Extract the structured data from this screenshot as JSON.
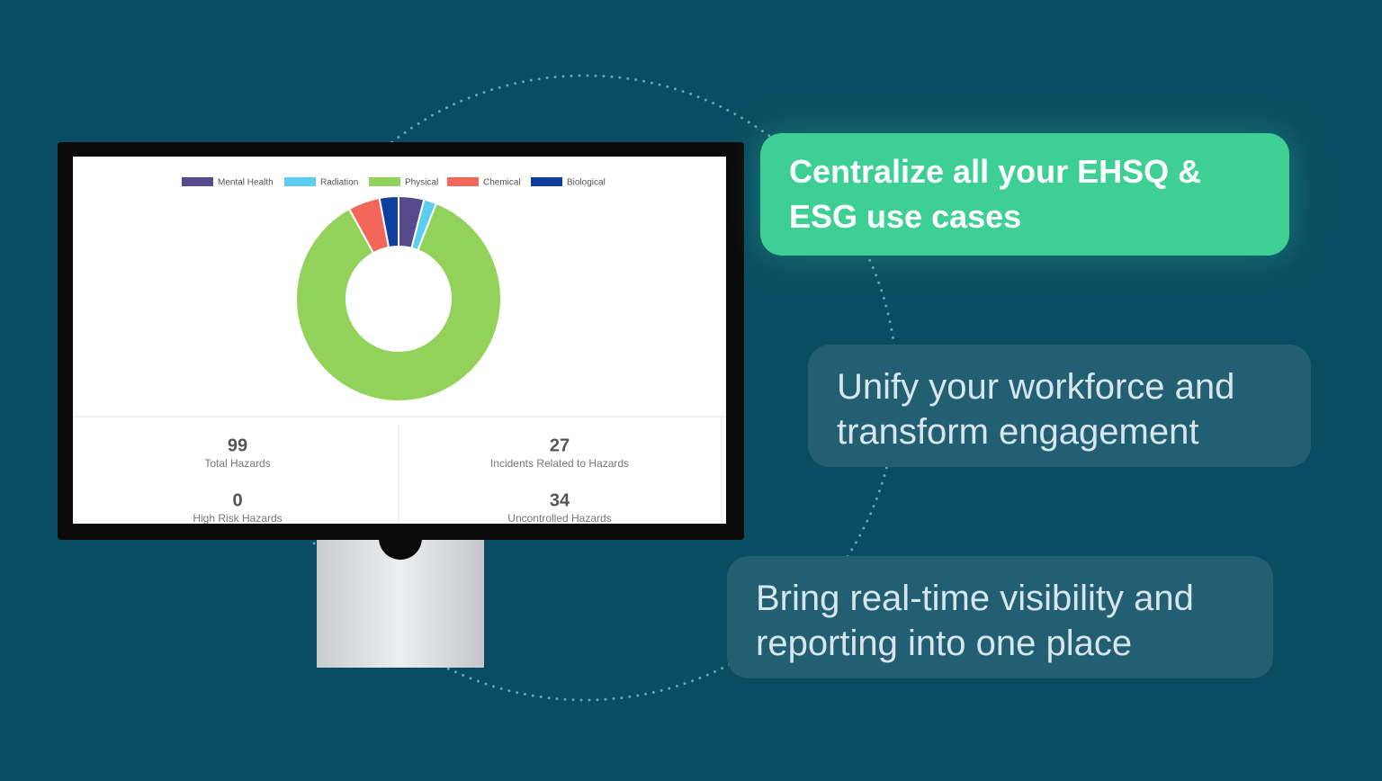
{
  "chart_data": {
    "type": "donut",
    "categories": [
      "Mental Health",
      "Radiation",
      "Physical",
      "Chemical",
      "Biological"
    ],
    "values": [
      4,
      2,
      86,
      5,
      3
    ],
    "colors": [
      "#574a8c",
      "#5bcdf0",
      "#93d25a",
      "#f3665a",
      "#0f3f9e"
    ]
  },
  "stats": [
    {
      "value": 99,
      "label": "Total Hazards"
    },
    {
      "value": 27,
      "label": "Incidents Related to Hazards"
    },
    {
      "value": 0,
      "label": "High Risk Hazards"
    },
    {
      "value": 34,
      "label": "Uncontrolled Hazards"
    }
  ],
  "callouts": [
    "Centralize all your EHSQ & ESG use cases",
    "Unify your workforce and transform engagement",
    "Bring real-time visibility and reporting into one place"
  ]
}
